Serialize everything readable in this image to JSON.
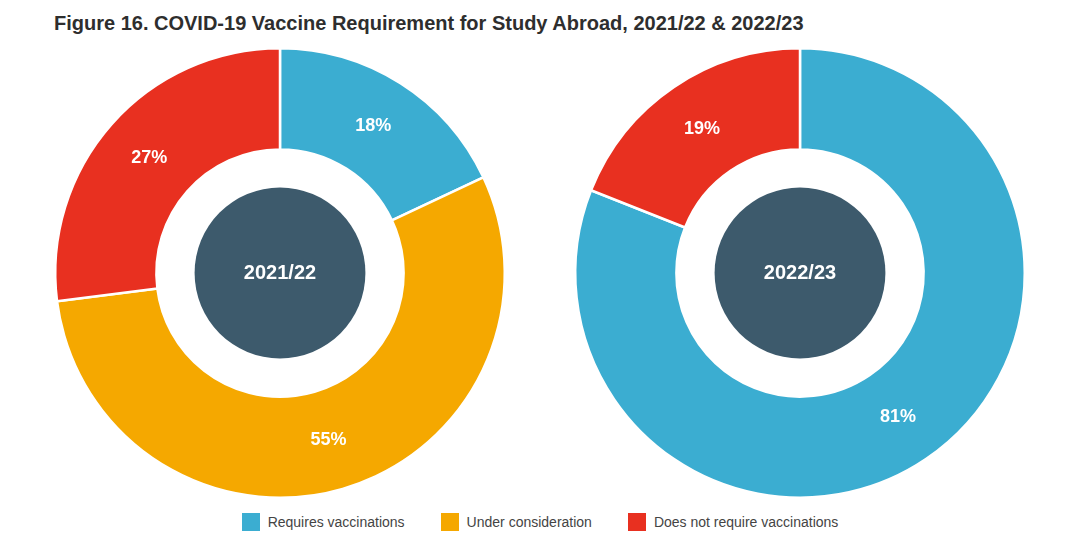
{
  "chart_data": {
    "type": "doughnut",
    "title": "Figure 16. COVID-19 Vaccine Requirement for Study Abroad, 2021/22 & 2022/23",
    "categories": [
      "Requires vaccinations",
      "Under consideration",
      "Does not require vaccinations"
    ],
    "colors": [
      "#3BADD1",
      "#F5A800",
      "#E83020"
    ],
    "series": [
      {
        "name": "2021/22",
        "values": [
          18,
          55,
          27
        ],
        "value_labels": [
          "18%",
          "55%",
          "27%"
        ]
      },
      {
        "name": "2022/23",
        "values": [
          81,
          null,
          19
        ],
        "value_labels": [
          "81%",
          null,
          "19%"
        ]
      }
    ],
    "data_labels": true,
    "legend": "bottom"
  }
}
